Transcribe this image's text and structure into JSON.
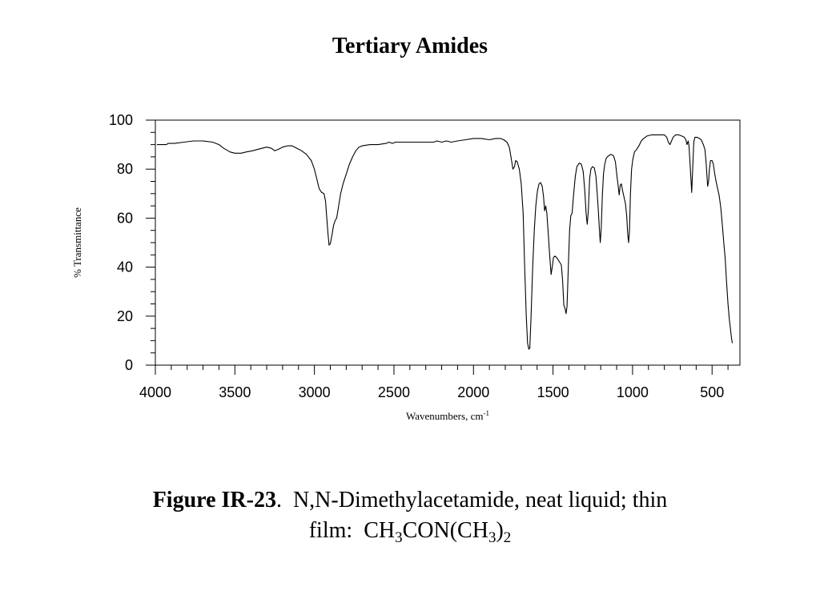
{
  "slide": {
    "title": "Tertiary Amides"
  },
  "caption": {
    "figure_label": "Figure IR-23",
    "separator": ".",
    "line1": "N,N-Dimethylacetamide, neat liquid; thin",
    "line2_prefix": "film:",
    "formula": [
      {
        "text": "CH",
        "sub": false
      },
      {
        "text": "3",
        "sub": true
      },
      {
        "text": "CON(CH",
        "sub": false
      },
      {
        "text": "3",
        "sub": true
      },
      {
        "text": ")",
        "sub": false
      },
      {
        "text": "2",
        "sub": true
      }
    ]
  },
  "chart_data": {
    "type": "line",
    "title": "",
    "xlabel": "Wavenumbers, cm",
    "xlabel_superscript": "-1",
    "ylabel": "% Transmittance",
    "xlim": [
      4000,
      325
    ],
    "ylim": [
      0,
      100
    ],
    "x_ticks": [
      4000,
      3500,
      3000,
      2500,
      2000,
      1500,
      1000,
      500
    ],
    "y_ticks": [
      0,
      20,
      40,
      60,
      80,
      100
    ],
    "grid": false,
    "legend": "none",
    "line_color": "#000000",
    "series": [
      {
        "points": [
          [
            3990,
            90
          ],
          [
            3930,
            90
          ],
          [
            3920,
            90.5
          ],
          [
            3880,
            90.5
          ],
          [
            3820,
            91
          ],
          [
            3760,
            91.5
          ],
          [
            3700,
            91.5
          ],
          [
            3640,
            91
          ],
          [
            3600,
            90
          ],
          [
            3570,
            88.5
          ],
          [
            3530,
            87
          ],
          [
            3500,
            86.5
          ],
          [
            3460,
            86.5
          ],
          [
            3430,
            87
          ],
          [
            3390,
            87.5
          ],
          [
            3360,
            88
          ],
          [
            3330,
            88.5
          ],
          [
            3300,
            89
          ],
          [
            3270,
            88.5
          ],
          [
            3250,
            87.5
          ],
          [
            3230,
            88
          ],
          [
            3200,
            89
          ],
          [
            3170,
            89.5
          ],
          [
            3140,
            89.5
          ],
          [
            3110,
            88.5
          ],
          [
            3080,
            87.5
          ],
          [
            3050,
            86
          ],
          [
            3020,
            83.5
          ],
          [
            3000,
            80
          ],
          [
            2985,
            76
          ],
          [
            2970,
            72
          ],
          [
            2955,
            70.5
          ],
          [
            2940,
            70
          ],
          [
            2930,
            67
          ],
          [
            2922,
            60
          ],
          [
            2915,
            54
          ],
          [
            2908,
            49
          ],
          [
            2900,
            49.5
          ],
          [
            2890,
            53
          ],
          [
            2880,
            57
          ],
          [
            2870,
            59
          ],
          [
            2860,
            60
          ],
          [
            2850,
            64
          ],
          [
            2835,
            70
          ],
          [
            2820,
            74
          ],
          [
            2800,
            78
          ],
          [
            2780,
            82
          ],
          [
            2760,
            85
          ],
          [
            2740,
            87.5
          ],
          [
            2720,
            89
          ],
          [
            2700,
            89.5
          ],
          [
            2650,
            90
          ],
          [
            2600,
            90
          ],
          [
            2550,
            90.5
          ],
          [
            2530,
            91
          ],
          [
            2510,
            90.5
          ],
          [
            2490,
            91
          ],
          [
            2400,
            91
          ],
          [
            2300,
            91
          ],
          [
            2250,
            91
          ],
          [
            2230,
            91.5
          ],
          [
            2200,
            91
          ],
          [
            2170,
            91.5
          ],
          [
            2140,
            91
          ],
          [
            2100,
            91.5
          ],
          [
            2050,
            92
          ],
          [
            2000,
            92.5
          ],
          [
            1950,
            92.5
          ],
          [
            1900,
            92
          ],
          [
            1860,
            92.5
          ],
          [
            1830,
            92.5
          ],
          [
            1810,
            92
          ],
          [
            1790,
            91
          ],
          [
            1775,
            89
          ],
          [
            1762,
            84
          ],
          [
            1752,
            80
          ],
          [
            1742,
            81
          ],
          [
            1735,
            83.5
          ],
          [
            1725,
            83
          ],
          [
            1712,
            80
          ],
          [
            1700,
            74
          ],
          [
            1688,
            62
          ],
          [
            1678,
            40
          ],
          [
            1668,
            20
          ],
          [
            1660,
            9
          ],
          [
            1652,
            6.5
          ],
          [
            1646,
            7
          ],
          [
            1638,
            20
          ],
          [
            1628,
            40
          ],
          [
            1618,
            55
          ],
          [
            1608,
            65
          ],
          [
            1598,
            71
          ],
          [
            1588,
            74
          ],
          [
            1578,
            74.5
          ],
          [
            1568,
            73
          ],
          [
            1560,
            69
          ],
          [
            1553,
            63
          ],
          [
            1546,
            65
          ],
          [
            1539,
            62
          ],
          [
            1530,
            54
          ],
          [
            1521,
            45
          ],
          [
            1512,
            37
          ],
          [
            1505,
            40
          ],
          [
            1497,
            44
          ],
          [
            1488,
            44.5
          ],
          [
            1478,
            44
          ],
          [
            1468,
            43
          ],
          [
            1458,
            42
          ],
          [
            1448,
            41
          ],
          [
            1440,
            35
          ],
          [
            1432,
            24.5
          ],
          [
            1424,
            23
          ],
          [
            1418,
            21
          ],
          [
            1412,
            24
          ],
          [
            1404,
            40
          ],
          [
            1396,
            55
          ],
          [
            1388,
            61
          ],
          [
            1380,
            62
          ],
          [
            1370,
            70
          ],
          [
            1360,
            77
          ],
          [
            1350,
            81
          ],
          [
            1335,
            82.5
          ],
          [
            1322,
            82
          ],
          [
            1310,
            79
          ],
          [
            1300,
            71
          ],
          [
            1292,
            62
          ],
          [
            1285,
            57.5
          ],
          [
            1278,
            63
          ],
          [
            1270,
            76
          ],
          [
            1262,
            80
          ],
          [
            1252,
            81
          ],
          [
            1240,
            80.5
          ],
          [
            1230,
            77
          ],
          [
            1222,
            70
          ],
          [
            1215,
            63
          ],
          [
            1208,
            55
          ],
          [
            1203,
            50
          ],
          [
            1197,
            56
          ],
          [
            1190,
            69
          ],
          [
            1183,
            78
          ],
          [
            1175,
            82
          ],
          [
            1165,
            84.5
          ],
          [
            1150,
            85.5
          ],
          [
            1135,
            86
          ],
          [
            1120,
            85.5
          ],
          [
            1108,
            83
          ],
          [
            1098,
            77
          ],
          [
            1090,
            73
          ],
          [
            1084,
            69.5
          ],
          [
            1077,
            73.5
          ],
          [
            1070,
            74
          ],
          [
            1062,
            71
          ],
          [
            1055,
            69
          ],
          [
            1045,
            66
          ],
          [
            1037,
            61
          ],
          [
            1030,
            53
          ],
          [
            1025,
            50
          ],
          [
            1019,
            55
          ],
          [
            1013,
            70
          ],
          [
            1006,
            80
          ],
          [
            998,
            84
          ],
          [
            988,
            87
          ],
          [
            975,
            88
          ],
          [
            960,
            89.5
          ],
          [
            945,
            91.5
          ],
          [
            930,
            92.5
          ],
          [
            910,
            93.5
          ],
          [
            880,
            94
          ],
          [
            850,
            94
          ],
          [
            820,
            94
          ],
          [
            800,
            94
          ],
          [
            785,
            93
          ],
          [
            775,
            91
          ],
          [
            765,
            90
          ],
          [
            755,
            91.5
          ],
          [
            745,
            93
          ],
          [
            730,
            94
          ],
          [
            710,
            94
          ],
          [
            690,
            93.5
          ],
          [
            675,
            93
          ],
          [
            665,
            92
          ],
          [
            658,
            90
          ],
          [
            650,
            91.5
          ],
          [
            645,
            89.5
          ],
          [
            640,
            84
          ],
          [
            632,
            75
          ],
          [
            628,
            70.5
          ],
          [
            622,
            80
          ],
          [
            615,
            91
          ],
          [
            608,
            93
          ],
          [
            595,
            93
          ],
          [
            580,
            92.5
          ],
          [
            568,
            92
          ],
          [
            555,
            90
          ],
          [
            545,
            88
          ],
          [
            538,
            83
          ],
          [
            532,
            77
          ],
          [
            528,
            73
          ],
          [
            522,
            75
          ],
          [
            517,
            80
          ],
          [
            510,
            83.5
          ],
          [
            500,
            83.5
          ],
          [
            492,
            82
          ],
          [
            483,
            78
          ],
          [
            475,
            75
          ],
          [
            465,
            72
          ],
          [
            455,
            69
          ],
          [
            445,
            64
          ],
          [
            435,
            57
          ],
          [
            425,
            49
          ],
          [
            418,
            44
          ],
          [
            410,
            35
          ],
          [
            400,
            25
          ],
          [
            392,
            19
          ],
          [
            385,
            15
          ],
          [
            378,
            11
          ],
          [
            373,
            9
          ]
        ]
      }
    ]
  }
}
